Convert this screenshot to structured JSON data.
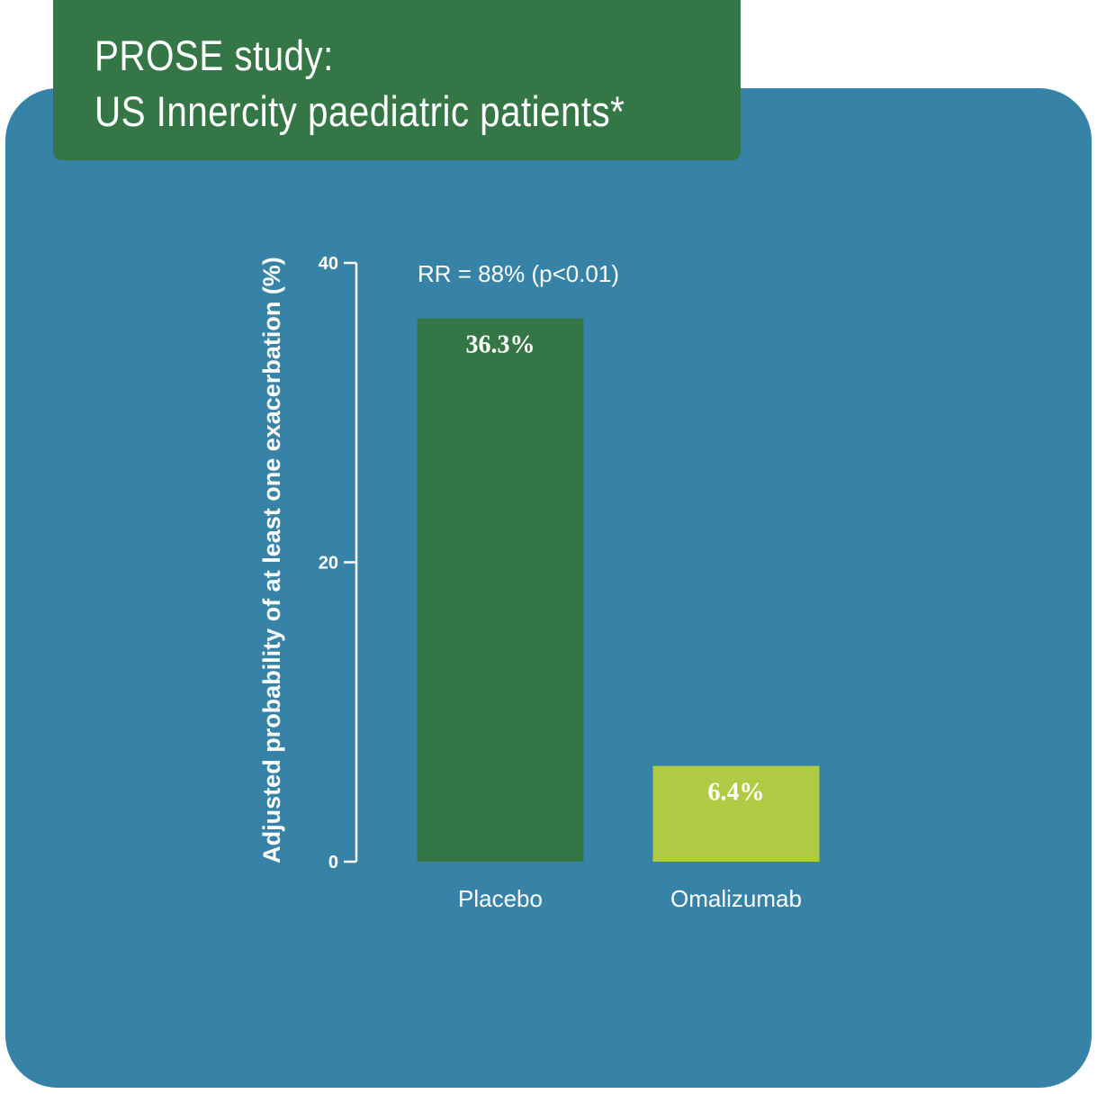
{
  "title": {
    "line1": "PROSE study:",
    "line2": "US Innercity paediatric patients*"
  },
  "colors": {
    "panel": "#3783a8",
    "title_box": "#347646",
    "placebo": "#347646",
    "omalizumab": "#b0ca43",
    "text": "#ffffff"
  },
  "chart_data": {
    "type": "bar",
    "categories": [
      "Placebo",
      "Omalizumab"
    ],
    "values": [
      36.3,
      6.4
    ],
    "data_labels": [
      "36.3%",
      "6.4%"
    ],
    "bar_colors": [
      "#347646",
      "#b0ca43"
    ],
    "ylabel": "Adjusted probability of at least one exacerbation (%)",
    "xlabel": "",
    "ylim": [
      0,
      40
    ],
    "yticks": [
      0,
      20,
      40
    ],
    "annotation": "RR = 88% (p<0.01)",
    "grid": false,
    "legend": "none"
  }
}
